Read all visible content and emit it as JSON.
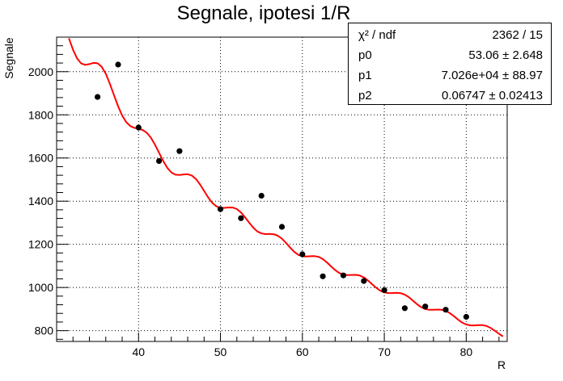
{
  "chart_data": {
    "type": "scatter",
    "title": "Segnale, ipotesi 1/R",
    "xlabel": "R",
    "ylabel": "Segnale",
    "xlim": [
      30.0,
      85.0
    ],
    "ylim": [
      750,
      2160
    ],
    "x_ticks": [
      40,
      50,
      60,
      70,
      80
    ],
    "y_ticks": [
      800,
      1000,
      1200,
      1400,
      1600,
      1800,
      2000
    ],
    "grid": true,
    "series": [
      {
        "kind": "points",
        "color": "#000000",
        "x": [
          35.0,
          37.5,
          40.0,
          42.5,
          45.0,
          50.0,
          52.5,
          55.0,
          57.5,
          60.0,
          62.5,
          65.0,
          67.5,
          70.0,
          72.5,
          75.0,
          77.5,
          80.0
        ],
        "y": [
          1883,
          2033,
          1741,
          1586,
          1632,
          1363,
          1321,
          1425,
          1281,
          1154,
          1052,
          1056,
          1030,
          988,
          904,
          912,
          897,
          864
        ]
      },
      {
        "kind": "fit-curve",
        "color": "#ff0000",
        "x": [
          31.5,
          32.0,
          32.5,
          33.0,
          33.5,
          34.0,
          34.5,
          35.0,
          35.5,
          36.0,
          36.5,
          37.0,
          37.5,
          38.0,
          38.5,
          39.0,
          39.5,
          40.0,
          40.5,
          41.0,
          41.5,
          42.0,
          42.5,
          43.0,
          43.5,
          44.0,
          44.5,
          45.0,
          45.5,
          46.0,
          46.5,
          47.0,
          47.5,
          48.0,
          48.5,
          49.0,
          49.5,
          50.0,
          50.5,
          51.0,
          51.5,
          52.0,
          52.5,
          53.0,
          53.5,
          54.0,
          54.5,
          55.0,
          55.5,
          56.0,
          56.5,
          57.0,
          57.5,
          58.0,
          58.5,
          59.0,
          59.5,
          60.0,
          60.5,
          61.0,
          61.5,
          62.0,
          62.5,
          63.0,
          63.5,
          64.0,
          64.5,
          65.0,
          65.5,
          66.0,
          66.5,
          67.0,
          67.5,
          68.0,
          68.5,
          69.0,
          69.5,
          70.0,
          70.5,
          71.0,
          71.5,
          72.0,
          72.5,
          73.0,
          73.5,
          74.0,
          74.5,
          75.0,
          75.5,
          76.0,
          76.5,
          77.0,
          77.5,
          78.0,
          78.5,
          79.0,
          79.5,
          80.0,
          80.5,
          81.0,
          81.5,
          82.0,
          82.5,
          83.0,
          83.5,
          84.0,
          84.5
        ],
        "y": [
          2154.8,
          2101.1,
          2061.1,
          2038.1,
          2031.4,
          2035.2,
          2040.7,
          2038.8,
          2022.7,
          1990.2,
          1944.3,
          1891.6,
          1840.0,
          1796.7,
          1765.8,
          1747.7,
          1739.5,
          1735.5,
          1729.8,
          1717.0,
          1694.3,
          1662.2,
          1624.5,
          1586.8,
          1555.0,
          1533.2,
          1522.6,
          1521.1,
          1524.0,
          1525.0,
          1518.9,
          1502.8,
          1477.7,
          1447.4,
          1417.2,
          1392.3,
          1376.0,
          1369.0,
          1368.9,
          1371.0,
          1370.4,
          1363.2,
          1347.7,
          1325.5,
          1300.4,
          1277.2,
          1259.8,
          1250.3,
          1247.6,
          1248.0,
          1246.8,
          1240.0,
          1226.2,
          1206.7,
          1185.0,
          1165.4,
          1151.4,
          1144.5,
          1143.4,
          1145.0,
          1145.4,
          1141.4,
          1131.4,
          1116.1,
          1098.0,
          1080.6,
          1067.2,
          1059.5,
          1057.3,
          1058.2,
          1058.7,
          1055.6,
          1046.9,
          1032.9,
          1015.7,
          998.6,
          985.1,
          976.9,
          973.9,
          974.4,
          975.4,
          973.8,
          967.1,
          954.8,
          939.0,
          922.6,
          908.8,
          899.9,
          896.5,
          896.7,
          897.9,
          897.1,
          891.8,
          881.3,
          866.9,
          851.3,
          837.7,
          828.4,
          824.5,
          824.4,
          825.8,
          825.5,
          821.3,
          812.1,
          799.3,
          785.5,
          773.3
        ]
      }
    ],
    "stats": {
      "rows": [
        {
          "key": "χ² / ndf",
          "value": "2362 / 15"
        },
        {
          "key": "p0",
          "value": "53.06  ± 2.648"
        },
        {
          "key": "p1",
          "value": "7.026e+04  ± 88.97"
        },
        {
          "key": "p2",
          "value": "0.06747  ± 0.02413"
        }
      ]
    }
  }
}
